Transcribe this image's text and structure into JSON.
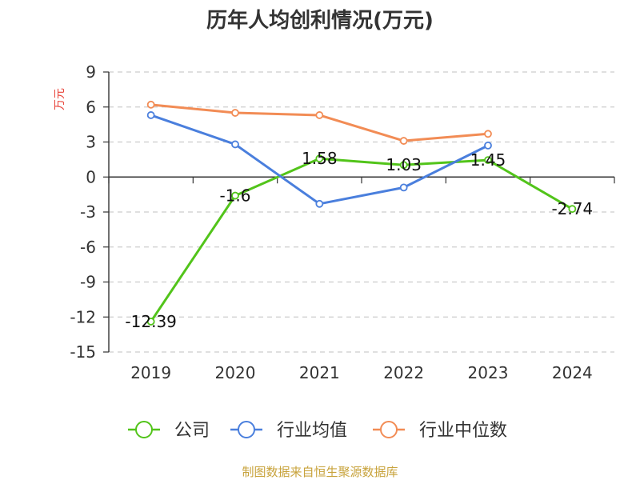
{
  "chart_data": {
    "type": "line",
    "title": "历年人均创利情况(万元)",
    "ylabel": "万元",
    "xlabel": "",
    "categories": [
      "2019",
      "2020",
      "2021",
      "2022",
      "2023",
      "2024"
    ],
    "y_ticks": [
      "9",
      "6",
      "3",
      "0",
      "-3",
      "-6",
      "-9",
      "-12",
      "-15"
    ],
    "ylim": [
      -15,
      9
    ],
    "grid": true,
    "legend_position": "bottom",
    "series": [
      {
        "name": "公司",
        "color": "#52c41a",
        "values": [
          -12.39,
          -1.6,
          1.58,
          1.03,
          1.45,
          -2.74
        ],
        "labels": [
          "-12.39",
          "-1.6",
          "1.58",
          "1.03",
          "1.45",
          "-2.74"
        ]
      },
      {
        "name": "行业均值",
        "color": "#4a7fdd",
        "values": [
          5.3,
          2.8,
          -2.3,
          -0.9,
          2.7,
          null
        ]
      },
      {
        "name": "行业中位数",
        "color": "#f28c55",
        "values": [
          6.2,
          5.5,
          5.3,
          3.1,
          3.7,
          null
        ]
      }
    ],
    "source": "制图数据来自恒生聚源数据库"
  }
}
